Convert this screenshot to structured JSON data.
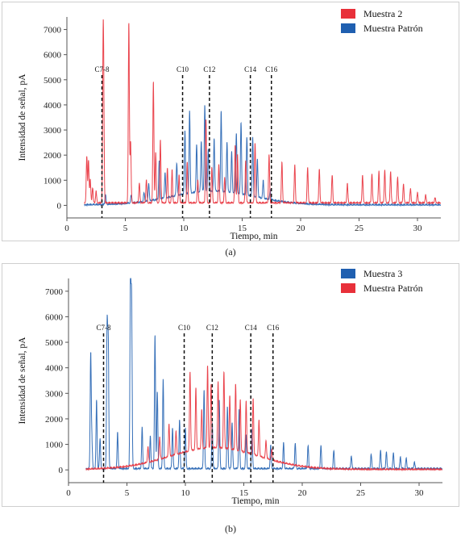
{
  "chart_data": [
    {
      "type": "line",
      "caption": "(a)",
      "xlabel": "Tiempo, min",
      "ylabel": "Intensidad de señal, pA",
      "xlim": [
        0,
        32
      ],
      "ylim": [
        -500,
        7500
      ],
      "xticks": [
        0,
        5,
        10,
        15,
        20,
        25,
        30
      ],
      "yticks": [
        0,
        1000,
        2000,
        3000,
        4000,
        5000,
        6000,
        7000
      ],
      "markers": [
        {
          "label": "C7-8",
          "x": 3.0
        },
        {
          "label": "C10",
          "x": 9.9
        },
        {
          "label": "C12",
          "x": 12.2
        },
        {
          "label": "C14",
          "x": 15.7
        },
        {
          "label": "C16",
          "x": 17.5
        }
      ],
      "legend": [
        {
          "name": "Muestra 2",
          "color": "#e8303a"
        },
        {
          "name": "Muestra Patrón",
          "color": "#1f5fb0"
        }
      ],
      "series": [
        {
          "name": "Muestra 2",
          "color": "#e8303a",
          "draw_order": 1,
          "peaks": [
            [
              1.7,
              1850
            ],
            [
              1.85,
              1700
            ],
            [
              2.0,
              900
            ],
            [
              2.2,
              600
            ],
            [
              2.5,
              450
            ],
            [
              3.1,
              5400
            ],
            [
              3.15,
              3000
            ],
            [
              5.3,
              7150
            ],
            [
              5.45,
              2400
            ],
            [
              6.2,
              800
            ],
            [
              6.8,
              900
            ],
            [
              7.4,
              4800
            ],
            [
              7.6,
              2000
            ],
            [
              8.0,
              2500
            ],
            [
              8.6,
              1400
            ],
            [
              9.0,
              1300
            ],
            [
              9.6,
              1100
            ],
            [
              10.3,
              1600
            ],
            [
              11.2,
              900
            ],
            [
              11.9,
              3300
            ],
            [
              12.4,
              1400
            ],
            [
              13.0,
              1500
            ],
            [
              13.5,
              1000
            ],
            [
              14.4,
              2300
            ],
            [
              14.6,
              1900
            ],
            [
              15.3,
              1700
            ],
            [
              16.1,
              2400
            ],
            [
              17.3,
              1900
            ],
            [
              18.4,
              1600
            ],
            [
              19.5,
              1500
            ],
            [
              20.6,
              1400
            ],
            [
              21.6,
              1350
            ],
            [
              22.7,
              1100
            ],
            [
              24.0,
              750
            ],
            [
              25.3,
              1100
            ],
            [
              26.1,
              1150
            ],
            [
              26.7,
              1250
            ],
            [
              27.2,
              1300
            ],
            [
              27.7,
              1250
            ],
            [
              28.3,
              1000
            ],
            [
              28.8,
              750
            ],
            [
              29.4,
              550
            ],
            [
              30.0,
              400
            ],
            [
              30.7,
              300
            ],
            [
              31.5,
              200
            ]
          ],
          "baseline": 80
        },
        {
          "name": "Muestra Patrón",
          "color": "#1f5fb0",
          "draw_order": 0,
          "peaks": [
            [
              3.3,
              400
            ],
            [
              5.5,
              300
            ],
            [
              6.6,
              350
            ],
            [
              7.0,
              700
            ],
            [
              7.9,
              1500
            ],
            [
              8.4,
              1000
            ],
            [
              9.4,
              1300
            ],
            [
              10.1,
              2500
            ],
            [
              10.5,
              3300
            ],
            [
              11.1,
              1900
            ],
            [
              11.5,
              2000
            ],
            [
              11.8,
              3450
            ],
            [
              12.1,
              1700
            ],
            [
              12.6,
              2100
            ],
            [
              13.2,
              3200
            ],
            [
              13.7,
              2000
            ],
            [
              14.1,
              1600
            ],
            [
              14.5,
              2400
            ],
            [
              14.9,
              2850
            ],
            [
              15.4,
              2300
            ],
            [
              15.9,
              2350
            ],
            [
              16.3,
              1500
            ],
            [
              16.8,
              700
            ],
            [
              17.4,
              400
            ]
          ],
          "baseline": 0,
          "hump": {
            "center": 12.5,
            "width": 3.5,
            "height": 550
          }
        }
      ]
    },
    {
      "type": "line",
      "caption": "(b)",
      "xlabel": "Tiempo, min",
      "ylabel": "Intensidad de señal, pA",
      "xlim": [
        0,
        32
      ],
      "ylim": [
        -500,
        7500
      ],
      "xticks": [
        0,
        5,
        10,
        15,
        20,
        25,
        30
      ],
      "yticks": [
        0,
        1000,
        2000,
        3000,
        4000,
        5000,
        6000,
        7000
      ],
      "markers": [
        {
          "label": "C7-8",
          "x": 3.0
        },
        {
          "label": "C10",
          "x": 9.9
        },
        {
          "label": "C12",
          "x": 12.3
        },
        {
          "label": "C14",
          "x": 15.6
        },
        {
          "label": "C16",
          "x": 17.5
        }
      ],
      "legend": [
        {
          "name": "Muestra 3",
          "color": "#1f5fb0"
        },
        {
          "name": "Muestra Patrón",
          "color": "#e8303a"
        }
      ],
      "series": [
        {
          "name": "Muestra 3",
          "color": "#1f5fb0",
          "draw_order": 0,
          "peaks": [
            [
              1.9,
              4500
            ],
            [
              2.0,
              1000
            ],
            [
              2.4,
              2700
            ],
            [
              2.7,
              1200
            ],
            [
              3.3,
              5500
            ],
            [
              3.4,
              4900
            ],
            [
              4.2,
              1400
            ],
            [
              5.3,
              7150
            ],
            [
              5.4,
              6400
            ],
            [
              6.3,
              1600
            ],
            [
              7.0,
              1300
            ],
            [
              7.4,
              5200
            ],
            [
              7.6,
              3000
            ],
            [
              8.1,
              3500
            ],
            [
              8.9,
              1600
            ],
            [
              9.5,
              1900
            ],
            [
              10.0,
              1600
            ],
            [
              11.6,
              3100
            ],
            [
              12.3,
              1800
            ],
            [
              12.9,
              2700
            ],
            [
              13.6,
              2400
            ],
            [
              14.0,
              1800
            ],
            [
              14.6,
              2300
            ],
            [
              15.2,
              1300
            ],
            [
              15.7,
              1500
            ],
            [
              17.3,
              900
            ],
            [
              18.4,
              1000
            ],
            [
              19.4,
              1000
            ],
            [
              20.5,
              900
            ],
            [
              21.6,
              900
            ],
            [
              22.7,
              700
            ],
            [
              24.2,
              500
            ],
            [
              25.9,
              550
            ],
            [
              26.7,
              700
            ],
            [
              27.2,
              650
            ],
            [
              27.8,
              600
            ],
            [
              28.4,
              450
            ],
            [
              28.9,
              400
            ],
            [
              29.6,
              250
            ]
          ],
          "baseline": 30
        },
        {
          "name": "Muestra Patrón",
          "color": "#e8303a",
          "draw_order": 1,
          "peaks": [
            [
              6.8,
              600
            ],
            [
              7.8,
              900
            ],
            [
              8.6,
              1300
            ],
            [
              9.2,
              900
            ],
            [
              10.4,
              3100
            ],
            [
              10.9,
              2400
            ],
            [
              11.4,
              1500
            ],
            [
              11.9,
              3200
            ],
            [
              12.2,
              2500
            ],
            [
              12.8,
              2600
            ],
            [
              13.3,
              3000
            ],
            [
              13.8,
              2100
            ],
            [
              14.3,
              2600
            ],
            [
              14.7,
              2000
            ],
            [
              15.2,
              2000
            ],
            [
              15.8,
              2200
            ],
            [
              16.3,
              1400
            ],
            [
              16.9,
              700
            ],
            [
              17.4,
              400
            ]
          ],
          "baseline": 0,
          "hump": {
            "center": 12.5,
            "width": 3.8,
            "height": 850
          }
        }
      ]
    }
  ]
}
